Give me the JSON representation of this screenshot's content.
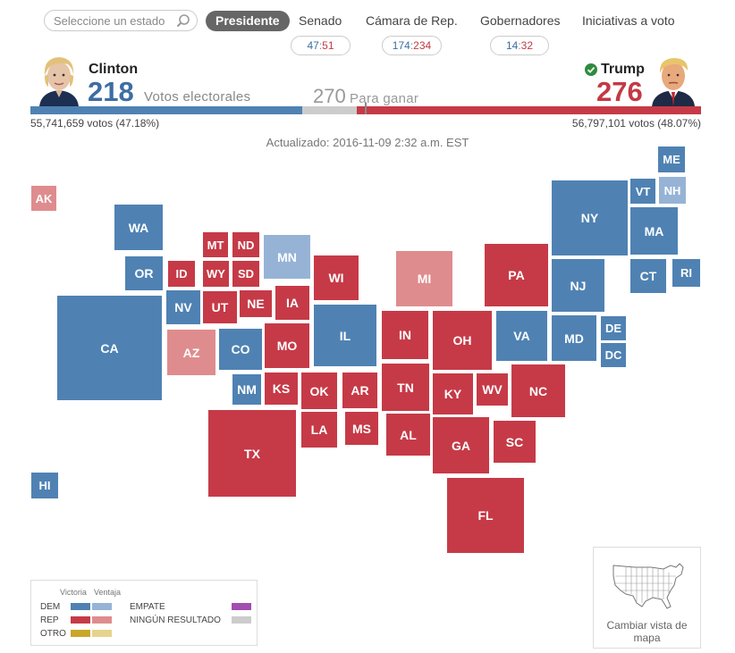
{
  "nav": {
    "search_placeholder": "Seleccione un estado",
    "tabs": [
      "Presidente",
      "Senado",
      "Cámara de Rep.",
      "Gobernadores",
      "Iniciativas a voto"
    ],
    "senate": {
      "dem": "47",
      "sep": ":",
      "rep": "51"
    },
    "house": {
      "dem": "174",
      "sep": ":",
      "rep": "234"
    },
    "governors": {
      "dem": "14",
      "sep": ":",
      "rep": "32"
    }
  },
  "candidates": {
    "dem": {
      "name": "Clinton",
      "ev": "218",
      "ev_label": "Votos electorales",
      "popular": "55,741,659 votos (47.18%)",
      "photo_icon": "clinton-photo"
    },
    "rep": {
      "name": "Trump",
      "ev": "276",
      "popular": "56,797,101 votos (48.07%)",
      "winner_icon": "check-icon",
      "photo_icon": "trump-photo"
    },
    "to_win": "270",
    "to_win_label": "Para ganar",
    "dem_share": 0.405,
    "rep_share": 0.513
  },
  "updated": "Actualizado: 2016-11-09 2:32 a.m. EST",
  "colors": {
    "dem_win": "#4f82b3",
    "dem_lean": "#96b3d6",
    "rep_win": "#c63a47",
    "rep_lean": "#df8c8e",
    "other_win": "#c9a72b",
    "other_lean": "#e6d48c",
    "tie": "#a24db0",
    "none": "#cccccc"
  },
  "states": [
    {
      "abbr": "AK",
      "status": "rl"
    },
    {
      "abbr": "WA",
      "status": "dw"
    },
    {
      "abbr": "OR",
      "status": "dw"
    },
    {
      "abbr": "CA",
      "status": "dw"
    },
    {
      "abbr": "HI",
      "status": "dw"
    },
    {
      "abbr": "MT",
      "status": "rw"
    },
    {
      "abbr": "ND",
      "status": "rw"
    },
    {
      "abbr": "ID",
      "status": "rw"
    },
    {
      "abbr": "WY",
      "status": "rw"
    },
    {
      "abbr": "SD",
      "status": "rw"
    },
    {
      "abbr": "MN",
      "status": "dl"
    },
    {
      "abbr": "NV",
      "status": "dw"
    },
    {
      "abbr": "UT",
      "status": "rw"
    },
    {
      "abbr": "NE",
      "status": "rw"
    },
    {
      "abbr": "IA",
      "status": "rw"
    },
    {
      "abbr": "AZ",
      "status": "rl"
    },
    {
      "abbr": "CO",
      "status": "dw"
    },
    {
      "abbr": "MO",
      "status": "rw"
    },
    {
      "abbr": "NM",
      "status": "dw"
    },
    {
      "abbr": "KS",
      "status": "rw"
    },
    {
      "abbr": "OK",
      "status": "rw"
    },
    {
      "abbr": "AR",
      "status": "rw"
    },
    {
      "abbr": "TX",
      "status": "rw"
    },
    {
      "abbr": "LA",
      "status": "rw"
    },
    {
      "abbr": "MS",
      "status": "rw"
    },
    {
      "abbr": "WI",
      "status": "rw"
    },
    {
      "abbr": "IL",
      "status": "dw"
    },
    {
      "abbr": "MI",
      "status": "rl"
    },
    {
      "abbr": "IN",
      "status": "rw"
    },
    {
      "abbr": "OH",
      "status": "rw"
    },
    {
      "abbr": "TN",
      "status": "rw"
    },
    {
      "abbr": "KY",
      "status": "rw"
    },
    {
      "abbr": "AL",
      "status": "rw"
    },
    {
      "abbr": "GA",
      "status": "rw"
    },
    {
      "abbr": "FL",
      "status": "rw"
    },
    {
      "abbr": "PA",
      "status": "rw"
    },
    {
      "abbr": "WV",
      "status": "rw"
    },
    {
      "abbr": "VA",
      "status": "dw"
    },
    {
      "abbr": "NC",
      "status": "rw"
    },
    {
      "abbr": "SC",
      "status": "rw"
    },
    {
      "abbr": "NY",
      "status": "dw"
    },
    {
      "abbr": "NJ",
      "status": "dw"
    },
    {
      "abbr": "MD",
      "status": "dw"
    },
    {
      "abbr": "DE",
      "status": "dw"
    },
    {
      "abbr": "DC",
      "status": "dw"
    },
    {
      "abbr": "ME",
      "status": "dw"
    },
    {
      "abbr": "VT",
      "status": "dw"
    },
    {
      "abbr": "NH",
      "status": "dl"
    },
    {
      "abbr": "MA",
      "status": "dw"
    },
    {
      "abbr": "CT",
      "status": "dw"
    },
    {
      "abbr": "RI",
      "status": "dw"
    }
  ],
  "legend": {
    "head_win": "Victoria",
    "head_lean": "Ventaja",
    "dem": "DEM",
    "rep": "REP",
    "other": "OTRO",
    "tie": "EMPATE",
    "none": "NINGÚN RESULTADO"
  },
  "map_switch": {
    "label": "Cambiar vista de mapa",
    "icon": "us-map-outline-icon"
  }
}
